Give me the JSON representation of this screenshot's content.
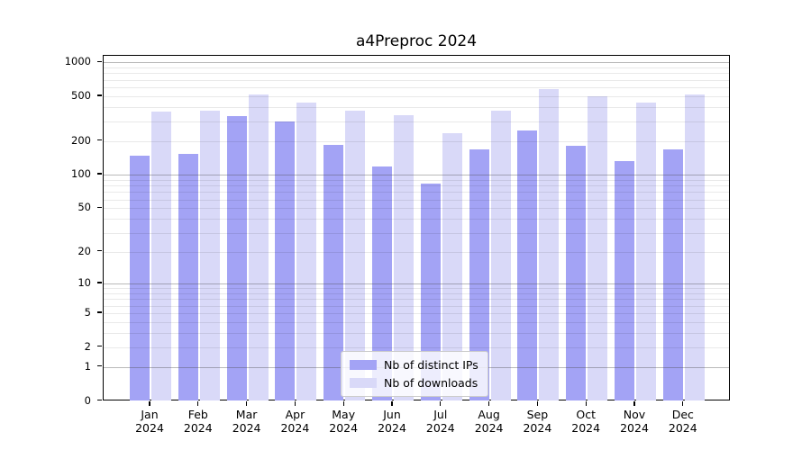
{
  "chart_data": {
    "type": "bar",
    "title": "a4Preproc 2024",
    "categories": [
      "Jan",
      "Feb",
      "Mar",
      "Apr",
      "May",
      "Jun",
      "Jul",
      "Aug",
      "Sep",
      "Oct",
      "Nov",
      "Dec"
    ],
    "category_year_label": "2024",
    "series": [
      {
        "name": "Nb of distinct IPs",
        "color": "#a3a3f5",
        "values": [
          147,
          154,
          332,
          297,
          185,
          118,
          83,
          169,
          247,
          182,
          132,
          169
        ]
      },
      {
        "name": "Nb of downloads",
        "color": "#d9d9f8",
        "values": [
          368,
          375,
          518,
          437,
          375,
          341,
          234,
          375,
          576,
          503,
          440,
          515
        ]
      }
    ],
    "yscale": "log10(1+y)",
    "ylim": [
      0,
      1000
    ],
    "y_ticks": [
      0,
      1,
      2,
      5,
      10,
      20,
      50,
      100,
      200,
      500,
      1000
    ],
    "grid": {
      "major_at": [
        1,
        10,
        100,
        1000
      ],
      "minor_per_decade": [
        2,
        3,
        4,
        5,
        6,
        7,
        8,
        9
      ],
      "shown": true
    },
    "legend": {
      "position": "lower center"
    }
  }
}
